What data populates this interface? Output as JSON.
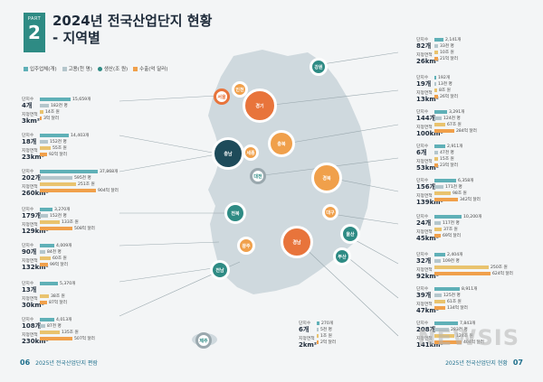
{
  "header": {
    "part_label": "PART",
    "part_number": "2",
    "title_line1": "2024년 전국산업단지 현황",
    "title_line2": "- 지역별"
  },
  "legend": [
    {
      "label": "입주업체(개)",
      "color": "#5fb0b7",
      "icon": "company-icon"
    },
    {
      "label": "고용(천 명)",
      "color": "#b4c6cc",
      "icon": "person-icon"
    },
    {
      "label": "생산(조 원)",
      "color": "#2e8b84",
      "icon": "coin-icon"
    },
    {
      "label": "수출(억 달러)",
      "color": "#f0a04b",
      "icon": "ship-icon"
    }
  ],
  "labels": {
    "complex": "단지수",
    "area": "지정면적"
  },
  "cards_left": [
    {
      "complex": "4개",
      "area": "3km²",
      "company": "15,659개",
      "employ": "182천 명",
      "prod": "14조 원",
      "export": "3억 달러"
    },
    {
      "complex": "18개",
      "area": "23km²",
      "company": "14,403개",
      "employ": "152천 명",
      "prod": "55조 원",
      "export": "92억 달러"
    },
    {
      "complex": "202개",
      "area": "260km²",
      "company": "37,868개",
      "employ": "595천 명",
      "prod": "251조 원",
      "export": "904억 달러"
    },
    {
      "complex": "179개",
      "area": "129km²",
      "company": "3,270개",
      "employ": "152천 명",
      "prod": "133조 원",
      "export": "508억 달러"
    },
    {
      "complex": "90개",
      "area": "132km²",
      "company": "4,009개",
      "employ": "84천 명",
      "prod": "60조 원",
      "export": "99억 달러"
    },
    {
      "complex": "13개",
      "area": "30km²",
      "company": "5,370개",
      "employ": "",
      "prod": "38조 원",
      "export": "87억 달러"
    },
    {
      "complex": "108개",
      "area": "230km²",
      "company": "4,013개",
      "employ": "87천 명",
      "prod": "135조 원",
      "export": "507억 달러"
    }
  ],
  "cards_right": [
    {
      "complex": "82개",
      "area": "26km²",
      "company": "2,141개",
      "employ": "33천 명",
      "prod": "10조 원",
      "export": "21억 달러"
    },
    {
      "complex": "19개",
      "area": "13km²",
      "company": "192개",
      "employ": "13천 명",
      "prod": "8조 원",
      "export": "26억 달러"
    },
    {
      "complex": "144개",
      "area": "100km²",
      "company": "3,291개",
      "employ": "124천 명",
      "prod": "67조 원",
      "export": "284억 달러"
    },
    {
      "complex": "6개",
      "area": "53km²",
      "company": "2,911개",
      "employ": "47천 명",
      "prod": "15조 원",
      "export": "23억 달러"
    },
    {
      "complex": "156개",
      "area": "139km²",
      "company": "6,358개",
      "employ": "171천 명",
      "prod": "98조 원",
      "export": "342억 달러"
    },
    {
      "complex": "24개",
      "area": "45km²",
      "company": "10,200개",
      "employ": "117천 명",
      "prod": "37조 원",
      "export": "69억 달러"
    },
    {
      "complex": "32개",
      "area": "92km²",
      "company": "2,404개",
      "employ": "109천 명",
      "prod": "250조 원",
      "export": "624억 달러"
    },
    {
      "complex": "39개",
      "area": "47km²",
      "company": "8,911개",
      "employ": "125천 명",
      "prod": "61조 원",
      "export": "134억 달러"
    },
    {
      "complex": "208개",
      "area": "141km²",
      "company": "7,843개",
      "employ": "283천 명",
      "prod": "124조 원",
      "export": "404억 달러"
    }
  ],
  "jeju_card": {
    "complex": "6개",
    "area": "2km²",
    "company": "270개",
    "employ": "5천 명",
    "prod": "1조 원",
    "export": "2억 달러"
  },
  "regions": [
    {
      "name": "서울",
      "color": "#ffffff",
      "text": "#e8743b"
    },
    {
      "name": "인천",
      "color": "#f0a04b",
      "text": "#ffffff"
    },
    {
      "name": "경기",
      "color": "#e8743b",
      "text": "#ffffff"
    },
    {
      "name": "강원",
      "color": "#2e8b84",
      "text": "#ffffff"
    },
    {
      "name": "충남",
      "color": "#1e4b5a",
      "text": "#ffffff"
    },
    {
      "name": "세종",
      "color": "#f0a04b",
      "text": "#ffffff"
    },
    {
      "name": "충북",
      "color": "#f0a04b",
      "text": "#ffffff"
    },
    {
      "name": "대전",
      "color": "#ffffff",
      "text": "#2e8b84"
    },
    {
      "name": "경북",
      "color": "#f0a04b",
      "text": "#ffffff"
    },
    {
      "name": "전북",
      "color": "#2e8b84",
      "text": "#ffffff"
    },
    {
      "name": "대구",
      "color": "#f0a04b",
      "text": "#ffffff"
    },
    {
      "name": "경남",
      "color": "#e8743b",
      "text": "#ffffff"
    },
    {
      "name": "울산",
      "color": "#2e8b84",
      "text": "#ffffff"
    },
    {
      "name": "광주",
      "color": "#f0a04b",
      "text": "#ffffff"
    },
    {
      "name": "부산",
      "color": "#2e8b84",
      "text": "#ffffff"
    },
    {
      "name": "전남",
      "color": "#2e8b84",
      "text": "#ffffff"
    },
    {
      "name": "제주",
      "color": "#ffffff",
      "text": "#2e8b84"
    }
  ],
  "footer": {
    "left_page": "06",
    "left_text": "2025년 전국산업단지 편람",
    "right_text": "2025년 전국산업단지 현황",
    "right_page": "07"
  },
  "watermark": "NEWSIS"
}
